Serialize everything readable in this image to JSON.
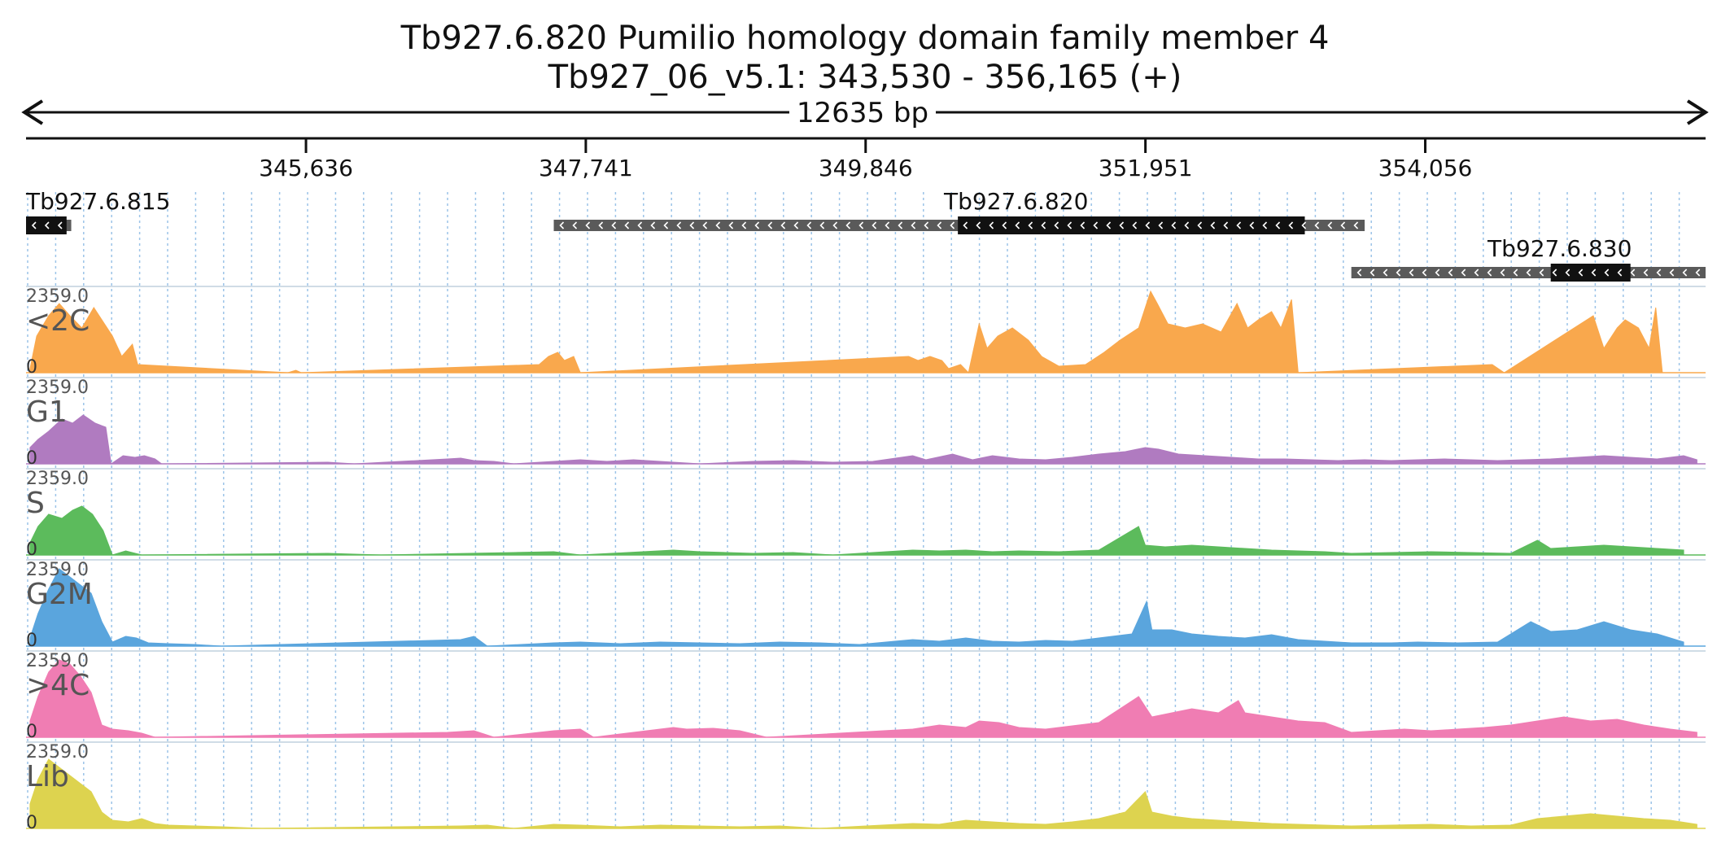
{
  "header": {
    "title": "Tb927.6.820  Pumilio homology domain family member 4",
    "location": "Tb927_06_v5.1: 343,530 - 356,165 (+)",
    "span_label": "12635 bp"
  },
  "region": {
    "start": 343530,
    "end": 356165
  },
  "ruler": {
    "ticks": [
      {
        "pos": 345636,
        "label": "345,636"
      },
      {
        "pos": 347741,
        "label": "347,741"
      },
      {
        "pos": 349846,
        "label": "349,846"
      },
      {
        "pos": 351951,
        "label": "351,951"
      },
      {
        "pos": 354056,
        "label": "354,056"
      }
    ]
  },
  "genes": [
    {
      "name": "Tb927.6.815",
      "strand": "-",
      "start": 343530,
      "end": 343870,
      "cds_start": 343530,
      "cds_end": 343835,
      "row": 0,
      "show_label": true
    },
    {
      "name": "Tb927.6.820",
      "strand": "-",
      "start": 347500,
      "end": 353600,
      "cds_start": 350540,
      "cds_end": 353150,
      "row": 0,
      "show_label": true
    },
    {
      "name": "Tb927.6.830",
      "strand": "-",
      "start": 353500,
      "end": 356165,
      "cds_start": 355000,
      "cds_end": 355600,
      "row": 1,
      "show_label": true
    }
  ],
  "tracks": [
    {
      "name": "<2C",
      "max_label": "2359.0",
      "zero_label": "0",
      "color": "#f9a84d"
    },
    {
      "name": "G1",
      "max_label": "2359.0",
      "zero_label": "0",
      "color": "#b07bc0"
    },
    {
      "name": "S",
      "max_label": "2359.0",
      "zero_label": "0",
      "color": "#5cbb5c"
    },
    {
      "name": "G2M",
      "max_label": "2359.0",
      "zero_label": "0",
      "color": "#5aa5dd"
    },
    {
      "name": ">4C",
      "max_label": "2359.0",
      "zero_label": "0",
      "color": "#f07db3"
    },
    {
      "name": "Lib",
      "max_label": "2359.0",
      "zero_label": "0",
      "color": "#ddd34f"
    }
  ],
  "coverage_profiles": [
    [
      [
        343560,
        0.05
      ],
      [
        343610,
        0.45
      ],
      [
        343700,
        0.7
      ],
      [
        343780,
        0.85
      ],
      [
        343860,
        0.7
      ],
      [
        343950,
        0.55
      ],
      [
        344040,
        0.8
      ],
      [
        344100,
        0.65
      ],
      [
        344180,
        0.45
      ],
      [
        344250,
        0.2
      ],
      [
        344330,
        0.35
      ],
      [
        344370,
        0.1
      ],
      [
        345500,
        0.0
      ],
      [
        345560,
        0.03
      ],
      [
        345600,
        0.0
      ],
      [
        347390,
        0.1
      ],
      [
        347460,
        0.2
      ],
      [
        347530,
        0.25
      ],
      [
        347580,
        0.15
      ],
      [
        347650,
        0.2
      ],
      [
        347700,
        0.0
      ],
      [
        350170,
        0.2
      ],
      [
        350240,
        0.15
      ],
      [
        350330,
        0.2
      ],
      [
        350420,
        0.15
      ],
      [
        350470,
        0.05
      ],
      [
        350560,
        0.1
      ],
      [
        350620,
        0.0
      ],
      [
        350700,
        0.6
      ],
      [
        350760,
        0.3
      ],
      [
        350840,
        0.45
      ],
      [
        350950,
        0.55
      ],
      [
        351070,
        0.4
      ],
      [
        351170,
        0.2
      ],
      [
        351300,
        0.08
      ],
      [
        351500,
        0.1
      ],
      [
        351640,
        0.25
      ],
      [
        351760,
        0.4
      ],
      [
        351900,
        0.55
      ],
      [
        351990,
        1.0
      ],
      [
        352040,
        0.85
      ],
      [
        352120,
        0.6
      ],
      [
        352250,
        0.55
      ],
      [
        352380,
        0.6
      ],
      [
        352520,
        0.5
      ],
      [
        352640,
        0.85
      ],
      [
        352720,
        0.55
      ],
      [
        352800,
        0.65
      ],
      [
        352900,
        0.75
      ],
      [
        352970,
        0.55
      ],
      [
        353050,
        0.9
      ],
      [
        353100,
        0.0
      ],
      [
        354560,
        0.1
      ],
      [
        354650,
        0.0
      ],
      [
        355320,
        0.7
      ],
      [
        355400,
        0.3
      ],
      [
        355500,
        0.55
      ],
      [
        355560,
        0.65
      ],
      [
        355660,
        0.55
      ],
      [
        355740,
        0.3
      ],
      [
        355790,
        0.8
      ],
      [
        355840,
        0.0
      ]
    ],
    [
      [
        343560,
        0.2
      ],
      [
        343620,
        0.3
      ],
      [
        343700,
        0.4
      ],
      [
        343800,
        0.55
      ],
      [
        343880,
        0.5
      ],
      [
        343960,
        0.6
      ],
      [
        344050,
        0.5
      ],
      [
        344130,
        0.45
      ],
      [
        344170,
        0.0
      ],
      [
        344260,
        0.1
      ],
      [
        344350,
        0.08
      ],
      [
        344420,
        0.1
      ],
      [
        344500,
        0.06
      ],
      [
        344550,
        0.0
      ],
      [
        345800,
        0.02
      ],
      [
        346000,
        0.0
      ],
      [
        346700,
        0.06
      ],
      [
        346800,
        0.07
      ],
      [
        346900,
        0.04
      ],
      [
        347050,
        0.03
      ],
      [
        347200,
        0.0
      ],
      [
        347500,
        0.03
      ],
      [
        347700,
        0.05
      ],
      [
        347900,
        0.03
      ],
      [
        348100,
        0.05
      ],
      [
        348300,
        0.03
      ],
      [
        348600,
        0.0
      ],
      [
        349000,
        0.03
      ],
      [
        349300,
        0.04
      ],
      [
        349600,
        0.02
      ],
      [
        349900,
        0.03
      ],
      [
        350200,
        0.1
      ],
      [
        350300,
        0.05
      ],
      [
        350500,
        0.12
      ],
      [
        350650,
        0.05
      ],
      [
        350800,
        0.1
      ],
      [
        350900,
        0.08
      ],
      [
        351000,
        0.06
      ],
      [
        351200,
        0.05
      ],
      [
        351400,
        0.08
      ],
      [
        351600,
        0.12
      ],
      [
        351800,
        0.15
      ],
      [
        351950,
        0.2
      ],
      [
        352050,
        0.18
      ],
      [
        352200,
        0.12
      ],
      [
        352400,
        0.1
      ],
      [
        352600,
        0.08
      ],
      [
        352800,
        0.06
      ],
      [
        353000,
        0.06
      ],
      [
        353200,
        0.05
      ],
      [
        353400,
        0.04
      ],
      [
        353600,
        0.05
      ],
      [
        353800,
        0.04
      ],
      [
        354000,
        0.05
      ],
      [
        354200,
        0.06
      ],
      [
        354400,
        0.05
      ],
      [
        354600,
        0.04
      ],
      [
        354800,
        0.05
      ],
      [
        355000,
        0.06
      ],
      [
        355200,
        0.08
      ],
      [
        355400,
        0.1
      ],
      [
        355600,
        0.08
      ],
      [
        355800,
        0.06
      ],
      [
        356000,
        0.1
      ],
      [
        356100,
        0.05
      ]
    ],
    [
      [
        343560,
        0.15
      ],
      [
        343620,
        0.35
      ],
      [
        343700,
        0.5
      ],
      [
        343800,
        0.45
      ],
      [
        343880,
        0.55
      ],
      [
        343950,
        0.6
      ],
      [
        344030,
        0.5
      ],
      [
        344110,
        0.3
      ],
      [
        344180,
        0.0
      ],
      [
        344280,
        0.05
      ],
      [
        344400,
        0.0
      ],
      [
        345800,
        0.02
      ],
      [
        346200,
        0.0
      ],
      [
        347200,
        0.03
      ],
      [
        347500,
        0.04
      ],
      [
        347700,
        0.0
      ],
      [
        348400,
        0.06
      ],
      [
        348600,
        0.04
      ],
      [
        348800,
        0.03
      ],
      [
        349000,
        0.02
      ],
      [
        349300,
        0.03
      ],
      [
        349600,
        0.0
      ],
      [
        350200,
        0.06
      ],
      [
        350400,
        0.05
      ],
      [
        350600,
        0.06
      ],
      [
        350800,
        0.04
      ],
      [
        351000,
        0.05
      ],
      [
        351300,
        0.04
      ],
      [
        351600,
        0.06
      ],
      [
        351900,
        0.35
      ],
      [
        351950,
        0.12
      ],
      [
        352100,
        0.1
      ],
      [
        352300,
        0.12
      ],
      [
        352500,
        0.1
      ],
      [
        352700,
        0.08
      ],
      [
        352900,
        0.06
      ],
      [
        353100,
        0.05
      ],
      [
        353300,
        0.04
      ],
      [
        353500,
        0.02
      ],
      [
        353800,
        0.03
      ],
      [
        354100,
        0.04
      ],
      [
        354400,
        0.03
      ],
      [
        354700,
        0.02
      ],
      [
        354900,
        0.18
      ],
      [
        355000,
        0.08
      ],
      [
        355200,
        0.1
      ],
      [
        355400,
        0.12
      ],
      [
        355600,
        0.1
      ],
      [
        355800,
        0.08
      ],
      [
        356000,
        0.06
      ]
    ],
    [
      [
        343560,
        0.1
      ],
      [
        343620,
        0.4
      ],
      [
        343700,
        0.7
      ],
      [
        343780,
        0.95
      ],
      [
        343860,
        0.85
      ],
      [
        343940,
        0.75
      ],
      [
        344020,
        0.65
      ],
      [
        344100,
        0.3
      ],
      [
        344180,
        0.05
      ],
      [
        344280,
        0.12
      ],
      [
        344360,
        0.1
      ],
      [
        344450,
        0.04
      ],
      [
        344600,
        0.03
      ],
      [
        344800,
        0.02
      ],
      [
        345000,
        0.0
      ],
      [
        346800,
        0.08
      ],
      [
        346900,
        0.12
      ],
      [
        347000,
        0.0
      ],
      [
        347500,
        0.04
      ],
      [
        347700,
        0.05
      ],
      [
        348000,
        0.03
      ],
      [
        348300,
        0.05
      ],
      [
        348600,
        0.04
      ],
      [
        348900,
        0.03
      ],
      [
        349200,
        0.05
      ],
      [
        349500,
        0.04
      ],
      [
        349800,
        0.02
      ],
      [
        350200,
        0.08
      ],
      [
        350400,
        0.06
      ],
      [
        350600,
        0.1
      ],
      [
        350800,
        0.06
      ],
      [
        351000,
        0.05
      ],
      [
        351200,
        0.07
      ],
      [
        351400,
        0.06
      ],
      [
        351600,
        0.1
      ],
      [
        351850,
        0.15
      ],
      [
        351960,
        0.55
      ],
      [
        352000,
        0.2
      ],
      [
        352150,
        0.2
      ],
      [
        352300,
        0.15
      ],
      [
        352500,
        0.12
      ],
      [
        352700,
        0.1
      ],
      [
        352900,
        0.14
      ],
      [
        353100,
        0.08
      ],
      [
        353300,
        0.06
      ],
      [
        353500,
        0.04
      ],
      [
        353800,
        0.04
      ],
      [
        354000,
        0.05
      ],
      [
        354300,
        0.04
      ],
      [
        354600,
        0.05
      ],
      [
        354850,
        0.3
      ],
      [
        355000,
        0.18
      ],
      [
        355200,
        0.2
      ],
      [
        355400,
        0.3
      ],
      [
        355600,
        0.2
      ],
      [
        355800,
        0.15
      ],
      [
        356000,
        0.05
      ]
    ],
    [
      [
        343560,
        0.2
      ],
      [
        343620,
        0.5
      ],
      [
        343700,
        0.8
      ],
      [
        343780,
        0.95
      ],
      [
        343860,
        0.9
      ],
      [
        343940,
        0.75
      ],
      [
        344020,
        0.55
      ],
      [
        344100,
        0.15
      ],
      [
        344180,
        0.1
      ],
      [
        344300,
        0.08
      ],
      [
        344400,
        0.05
      ],
      [
        344500,
        0.0
      ],
      [
        346700,
        0.06
      ],
      [
        346900,
        0.08
      ],
      [
        347050,
        0.0
      ],
      [
        347500,
        0.08
      ],
      [
        347700,
        0.1
      ],
      [
        347800,
        0.0
      ],
      [
        348400,
        0.12
      ],
      [
        348500,
        0.1
      ],
      [
        348700,
        0.11
      ],
      [
        348900,
        0.08
      ],
      [
        349100,
        0.0
      ],
      [
        350200,
        0.1
      ],
      [
        350400,
        0.15
      ],
      [
        350600,
        0.12
      ],
      [
        350700,
        0.2
      ],
      [
        350850,
        0.18
      ],
      [
        351000,
        0.12
      ],
      [
        351200,
        0.1
      ],
      [
        351400,
        0.14
      ],
      [
        351600,
        0.18
      ],
      [
        351900,
        0.5
      ],
      [
        352000,
        0.25
      ],
      [
        352150,
        0.3
      ],
      [
        352300,
        0.35
      ],
      [
        352500,
        0.3
      ],
      [
        352650,
        0.45
      ],
      [
        352700,
        0.3
      ],
      [
        352900,
        0.25
      ],
      [
        353100,
        0.2
      ],
      [
        353300,
        0.18
      ],
      [
        353500,
        0.06
      ],
      [
        353700,
        0.08
      ],
      [
        353900,
        0.1
      ],
      [
        354100,
        0.08
      ],
      [
        354300,
        0.1
      ],
      [
        354500,
        0.12
      ],
      [
        354700,
        0.15
      ],
      [
        354900,
        0.2
      ],
      [
        355100,
        0.25
      ],
      [
        355300,
        0.2
      ],
      [
        355500,
        0.22
      ],
      [
        355700,
        0.15
      ],
      [
        355900,
        0.1
      ],
      [
        356100,
        0.06
      ]
    ],
    [
      [
        343560,
        0.3
      ],
      [
        343620,
        0.6
      ],
      [
        343700,
        0.85
      ],
      [
        343780,
        0.75
      ],
      [
        343860,
        0.65
      ],
      [
        343940,
        0.55
      ],
      [
        344020,
        0.45
      ],
      [
        344100,
        0.2
      ],
      [
        344180,
        0.1
      ],
      [
        344300,
        0.08
      ],
      [
        344400,
        0.12
      ],
      [
        344500,
        0.06
      ],
      [
        344600,
        0.04
      ],
      [
        344800,
        0.03
      ],
      [
        345000,
        0.02
      ],
      [
        345300,
        0.0
      ],
      [
        346800,
        0.03
      ],
      [
        347000,
        0.04
      ],
      [
        347200,
        0.0
      ],
      [
        347500,
        0.05
      ],
      [
        347700,
        0.04
      ],
      [
        348000,
        0.02
      ],
      [
        348300,
        0.04
      ],
      [
        348600,
        0.03
      ],
      [
        348900,
        0.02
      ],
      [
        349200,
        0.03
      ],
      [
        349500,
        0.0
      ],
      [
        350200,
        0.06
      ],
      [
        350400,
        0.05
      ],
      [
        350600,
        0.1
      ],
      [
        350800,
        0.08
      ],
      [
        351000,
        0.06
      ],
      [
        351200,
        0.05
      ],
      [
        351400,
        0.08
      ],
      [
        351600,
        0.12
      ],
      [
        351800,
        0.2
      ],
      [
        351950,
        0.45
      ],
      [
        352000,
        0.2
      ],
      [
        352150,
        0.15
      ],
      [
        352300,
        0.12
      ],
      [
        352500,
        0.1
      ],
      [
        352700,
        0.08
      ],
      [
        352900,
        0.06
      ],
      [
        353100,
        0.05
      ],
      [
        353300,
        0.04
      ],
      [
        353500,
        0.03
      ],
      [
        353800,
        0.04
      ],
      [
        354100,
        0.05
      ],
      [
        354400,
        0.03
      ],
      [
        354700,
        0.04
      ],
      [
        354900,
        0.12
      ],
      [
        355100,
        0.15
      ],
      [
        355300,
        0.18
      ],
      [
        355500,
        0.15
      ],
      [
        355700,
        0.12
      ],
      [
        355900,
        0.1
      ],
      [
        356100,
        0.05
      ]
    ]
  ]
}
